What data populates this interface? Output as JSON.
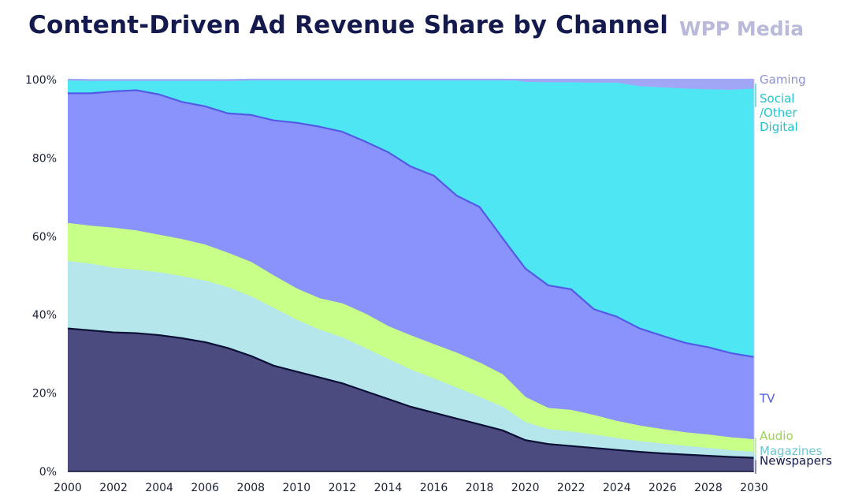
{
  "header": {
    "title": "Content-Driven Ad Revenue Share by Channel",
    "brand": "WPP Media"
  },
  "chart_data": {
    "type": "area",
    "stacked": true,
    "title": "Content-Driven Ad Revenue Share by Channel",
    "xlabel": "",
    "ylabel": "",
    "x": [
      2000,
      2001,
      2002,
      2003,
      2004,
      2005,
      2006,
      2007,
      2008,
      2009,
      2010,
      2011,
      2012,
      2013,
      2014,
      2015,
      2016,
      2017,
      2018,
      2019,
      2020,
      2021,
      2022,
      2023,
      2024,
      2025,
      2026,
      2027,
      2028,
      2029,
      2030
    ],
    "x_ticks": [
      "2000",
      "2002",
      "2004",
      "2006",
      "2008",
      "2010",
      "2012",
      "2014",
      "2016",
      "2018",
      "2020",
      "2022",
      "2024",
      "2026",
      "2028",
      "2030"
    ],
    "x_tick_values": [
      2000,
      2002,
      2004,
      2006,
      2008,
      2010,
      2012,
      2014,
      2016,
      2018,
      2020,
      2022,
      2024,
      2026,
      2028,
      2030
    ],
    "y_ticks": [
      "0%",
      "20%",
      "40%",
      "60%",
      "80%",
      "100%"
    ],
    "y_tick_values": [
      0,
      20,
      40,
      60,
      80,
      100
    ],
    "ylim": [
      0,
      100
    ],
    "xlim": [
      2000,
      2030
    ],
    "series": [
      {
        "name": "Newspapers",
        "fill": "#4b4b80",
        "line": "#0b1034",
        "label_color": "#141a4d",
        "values": [
          36.5,
          36.0,
          35.5,
          35.3,
          34.8,
          34.0,
          33.0,
          31.5,
          29.5,
          27.0,
          25.5,
          24.0,
          22.5,
          20.5,
          18.5,
          16.5,
          15.0,
          13.5,
          12.0,
          10.5,
          8.0,
          7.0,
          6.5,
          6.0,
          5.5,
          5.0,
          4.6,
          4.3,
          4.0,
          3.7,
          3.5
        ]
      },
      {
        "name": "Magazines",
        "fill": "#b4e6ec",
        "line": "#b4e6ec",
        "label_color": "#6cc6d2",
        "values": [
          17.0,
          16.8,
          16.3,
          16.0,
          15.8,
          15.6,
          15.5,
          15.3,
          15.0,
          14.5,
          13.0,
          12.0,
          11.5,
          10.8,
          10.0,
          9.3,
          8.5,
          7.7,
          6.8,
          5.8,
          4.4,
          3.6,
          3.5,
          3.2,
          2.8,
          2.5,
          2.3,
          2.0,
          1.8,
          1.5,
          1.3
        ]
      },
      {
        "name": "Audio",
        "fill": "#c8ff88",
        "line": "#c8ff88",
        "label_color": "#99d64f",
        "values": [
          9.7,
          9.7,
          10.2,
          10.0,
          9.6,
          9.5,
          9.2,
          8.8,
          8.8,
          8.3,
          8.0,
          8.0,
          8.7,
          8.8,
          8.4,
          8.7,
          8.8,
          8.9,
          8.8,
          8.3,
          6.4,
          5.4,
          5.5,
          5.0,
          4.4,
          4.0,
          3.7,
          3.5,
          3.4,
          3.3,
          3.2
        ]
      },
      {
        "name": "TV",
        "fill": "#8a92fb",
        "line": "#525be6",
        "label_color": "#525be6",
        "values": [
          33.3,
          34.0,
          35.0,
          36.0,
          36.0,
          35.2,
          35.5,
          35.8,
          37.7,
          39.8,
          42.5,
          44.0,
          44.0,
          44.1,
          44.6,
          43.3,
          43.2,
          40.3,
          39.9,
          35.0,
          33.0,
          31.5,
          31.0,
          27.2,
          26.8,
          25.0,
          24.0,
          23.0,
          22.5,
          21.7,
          21.2
        ]
      },
      {
        "name": "Social /Other Digital",
        "fill": "#4fe6f3",
        "line": "#4fe6f3",
        "label_color": "#22c3d1",
        "values": [
          3.5,
          3.4,
          2.9,
          2.6,
          3.7,
          5.6,
          6.7,
          8.5,
          9.0,
          10.4,
          11.0,
          12.0,
          13.3,
          15.8,
          18.5,
          22.2,
          24.5,
          29.6,
          32.5,
          40.4,
          47.4,
          51.6,
          52.6,
          57.6,
          59.5,
          61.6,
          63.2,
          64.7,
          65.6,
          67.0,
          68.3
        ]
      },
      {
        "name": "Gaming",
        "fill": "#a2a6f6",
        "line": "#a2a6f6",
        "label_color": "#8c91d6",
        "values": [
          0,
          0,
          0,
          0,
          0,
          0,
          0,
          0,
          0,
          0,
          0,
          0,
          0,
          0,
          0,
          0,
          0,
          0,
          0,
          0,
          0.8,
          0.9,
          0.9,
          1.0,
          1.0,
          1.9,
          2.2,
          2.5,
          2.7,
          2.8,
          2.5
        ]
      }
    ]
  }
}
